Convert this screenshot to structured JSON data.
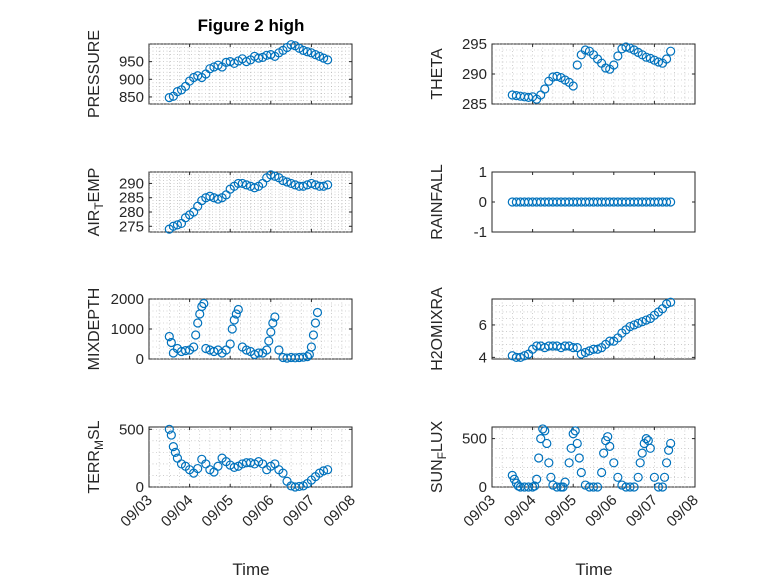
{
  "figure": {
    "title": "Figure 2 high",
    "xlabel": "Time",
    "x_tick_labels": [
      "09/03",
      "09/04",
      "09/05",
      "09/06",
      "09/07",
      "09/08"
    ],
    "marker_color": "#0072BD"
  },
  "chart_data": [
    {
      "type": "scatter",
      "ylabel": "PRESSURE",
      "ylim": [
        830,
        1000
      ],
      "yticks": [
        850,
        900,
        950
      ],
      "grid": true,
      "x": [
        3.5,
        3.6,
        3.7,
        3.8,
        3.9,
        4.0,
        4.1,
        4.2,
        4.3,
        4.4,
        4.5,
        4.6,
        4.7,
        4.8,
        4.9,
        5.0,
        5.1,
        5.2,
        5.3,
        5.4,
        5.5,
        5.6,
        5.7,
        5.8,
        5.9,
        6.0,
        6.1,
        6.2,
        6.3,
        6.4,
        6.5,
        6.6,
        6.7,
        6.8,
        6.9,
        7.0,
        7.1,
        7.2,
        7.3,
        7.4
      ],
      "y": [
        848,
        852,
        865,
        870,
        880,
        895,
        905,
        910,
        905,
        915,
        930,
        935,
        940,
        935,
        948,
        950,
        945,
        952,
        958,
        950,
        955,
        965,
        960,
        962,
        968,
        970,
        965,
        975,
        982,
        990,
        998,
        995,
        988,
        982,
        978,
        975,
        970,
        965,
        960,
        955
      ]
    },
    {
      "type": "scatter",
      "ylabel": "THETA",
      "ylim": [
        285,
        295
      ],
      "yticks": [
        285,
        290,
        295
      ],
      "grid": true,
      "x": [
        3.5,
        3.6,
        3.7,
        3.8,
        3.9,
        4.0,
        4.1,
        4.2,
        4.3,
        4.4,
        4.5,
        4.6,
        4.7,
        4.8,
        4.9,
        5.0,
        5.1,
        5.2,
        5.3,
        5.4,
        5.5,
        5.6,
        5.7,
        5.8,
        5.9,
        6.0,
        6.1,
        6.2,
        6.3,
        6.4,
        6.5,
        6.6,
        6.7,
        6.8,
        6.9,
        7.0,
        7.1,
        7.2,
        7.3,
        7.4
      ],
      "y": [
        286.5,
        286.4,
        286.3,
        286.2,
        286.1,
        286.2,
        285.8,
        286.5,
        287.5,
        288.8,
        289.5,
        289.6,
        289.4,
        289.0,
        288.6,
        288.0,
        291.5,
        293.2,
        294.0,
        293.8,
        293.2,
        292.5,
        291.8,
        291.0,
        290.8,
        291.5,
        293.0,
        294.2,
        294.5,
        294.3,
        294.0,
        293.6,
        293.2,
        292.8,
        292.6,
        292.3,
        292.0,
        291.8,
        292.5,
        293.8
      ]
    },
    {
      "type": "scatter",
      "ylabel": "AIR_TEMP",
      "ylim": [
        273,
        294
      ],
      "yticks": [
        275,
        280,
        285,
        290
      ],
      "grid": true,
      "x": [
        3.5,
        3.6,
        3.7,
        3.8,
        3.9,
        4.0,
        4.1,
        4.2,
        4.3,
        4.4,
        4.5,
        4.6,
        4.7,
        4.8,
        4.9,
        5.0,
        5.1,
        5.2,
        5.3,
        5.4,
        5.5,
        5.6,
        5.7,
        5.8,
        5.9,
        6.0,
        6.1,
        6.2,
        6.3,
        6.4,
        6.5,
        6.6,
        6.7,
        6.8,
        6.9,
        7.0,
        7.1,
        7.2,
        7.3,
        7.4
      ],
      "y": [
        274,
        275,
        275.5,
        276,
        278,
        279,
        280,
        282,
        284,
        285,
        285.5,
        285,
        284.5,
        285,
        286,
        288,
        289,
        290,
        290,
        289.5,
        289,
        288.5,
        289,
        290,
        292,
        293,
        292.5,
        292,
        291,
        290.5,
        290,
        289.5,
        289,
        289,
        289.5,
        290,
        289.5,
        289,
        289,
        289.5
      ]
    },
    {
      "type": "scatter",
      "ylabel": "RAINFALL",
      "ylim": [
        -1,
        1
      ],
      "yticks": [
        -1,
        0,
        1
      ],
      "grid": false,
      "x": [
        3.5,
        3.6,
        3.7,
        3.8,
        3.9,
        4.0,
        4.1,
        4.2,
        4.3,
        4.4,
        4.5,
        4.6,
        4.7,
        4.8,
        4.9,
        5.0,
        5.1,
        5.2,
        5.3,
        5.4,
        5.5,
        5.6,
        5.7,
        5.8,
        5.9,
        6.0,
        6.1,
        6.2,
        6.3,
        6.4,
        6.5,
        6.6,
        6.7,
        6.8,
        6.9,
        7.0,
        7.1,
        7.2,
        7.3,
        7.4
      ],
      "y": [
        0,
        0,
        0,
        0,
        0,
        0,
        0,
        0,
        0,
        0,
        0,
        0,
        0,
        0,
        0,
        0,
        0,
        0,
        0,
        0,
        0,
        0,
        0,
        0,
        0,
        0,
        0,
        0,
        0,
        0,
        0,
        0,
        0,
        0,
        0,
        0,
        0,
        0,
        0,
        0
      ]
    },
    {
      "type": "scatter",
      "ylabel": "MIXDEPTH",
      "ylim": [
        0,
        2000
      ],
      "yticks": [
        0,
        1000,
        2000
      ],
      "grid": true,
      "x": [
        3.5,
        3.55,
        3.6,
        3.7,
        3.8,
        3.9,
        4.0,
        4.1,
        4.15,
        4.2,
        4.25,
        4.3,
        4.35,
        4.4,
        4.5,
        4.6,
        4.7,
        4.8,
        4.9,
        5.0,
        5.05,
        5.1,
        5.15,
        5.2,
        5.3,
        5.4,
        5.5,
        5.6,
        5.7,
        5.8,
        5.9,
        5.95,
        6.0,
        6.05,
        6.1,
        6.2,
        6.3,
        6.4,
        6.5,
        6.6,
        6.7,
        6.8,
        6.9,
        6.95,
        7.0,
        7.05,
        7.1,
        7.15
      ],
      "y": [
        750,
        550,
        200,
        350,
        250,
        280,
        300,
        400,
        800,
        1200,
        1500,
        1750,
        1850,
        350,
        300,
        250,
        300,
        200,
        300,
        500,
        1000,
        1300,
        1500,
        1650,
        400,
        300,
        250,
        150,
        200,
        200,
        300,
        600,
        900,
        1200,
        1400,
        300,
        50,
        30,
        50,
        40,
        50,
        60,
        80,
        150,
        400,
        800,
        1200,
        1550
      ]
    },
    {
      "type": "scatter",
      "ylabel": "H2OMIXRA",
      "ylim": [
        3.9,
        7.6
      ],
      "yticks": [
        4,
        6
      ],
      "grid": true,
      "x": [
        3.5,
        3.6,
        3.7,
        3.8,
        3.9,
        4.0,
        4.1,
        4.2,
        4.3,
        4.4,
        4.5,
        4.6,
        4.7,
        4.8,
        4.9,
        5.0,
        5.1,
        5.2,
        5.3,
        5.4,
        5.5,
        5.6,
        5.7,
        5.8,
        5.9,
        6.0,
        6.1,
        6.2,
        6.3,
        6.4,
        6.5,
        6.6,
        6.7,
        6.8,
        6.9,
        7.0,
        7.1,
        7.2,
        7.3,
        7.4
      ],
      "y": [
        4.1,
        4.0,
        4.0,
        4.1,
        4.2,
        4.5,
        4.7,
        4.7,
        4.6,
        4.7,
        4.7,
        4.7,
        4.6,
        4.7,
        4.7,
        4.6,
        4.6,
        4.2,
        4.3,
        4.4,
        4.5,
        4.5,
        4.6,
        4.8,
        5.0,
        5.0,
        5.2,
        5.5,
        5.7,
        5.9,
        6.0,
        6.1,
        6.2,
        6.3,
        6.4,
        6.6,
        6.8,
        7.0,
        7.3,
        7.4
      ]
    },
    {
      "type": "scatter",
      "ylabel": "TERR_MSL",
      "ylim": [
        0,
        520
      ],
      "yticks": [
        0,
        500
      ],
      "grid": true,
      "x": [
        3.5,
        3.55,
        3.6,
        3.65,
        3.7,
        3.8,
        3.9,
        4.0,
        4.1,
        4.2,
        4.3,
        4.4,
        4.5,
        4.6,
        4.7,
        4.8,
        4.9,
        5.0,
        5.1,
        5.2,
        5.3,
        5.4,
        5.5,
        5.6,
        5.7,
        5.8,
        5.9,
        6.0,
        6.1,
        6.2,
        6.3,
        6.4,
        6.5,
        6.6,
        6.7,
        6.8,
        6.9,
        7.0,
        7.1,
        7.2,
        7.3,
        7.4
      ],
      "y": [
        500,
        450,
        350,
        300,
        250,
        200,
        180,
        150,
        120,
        160,
        240,
        200,
        150,
        130,
        180,
        250,
        220,
        190,
        170,
        180,
        200,
        210,
        210,
        200,
        220,
        200,
        150,
        180,
        200,
        150,
        120,
        50,
        10,
        0,
        5,
        10,
        30,
        60,
        90,
        120,
        140,
        150
      ]
    },
    {
      "type": "scatter",
      "ylabel": "SUN_FLUX",
      "ylim": [
        0,
        620
      ],
      "yticks": [
        0,
        500
      ],
      "grid": true,
      "x": [
        3.5,
        3.55,
        3.6,
        3.65,
        3.7,
        3.8,
        3.9,
        4.0,
        4.05,
        4.1,
        4.15,
        4.2,
        4.25,
        4.3,
        4.35,
        4.4,
        4.45,
        4.5,
        4.6,
        4.7,
        4.75,
        4.8,
        4.9,
        4.95,
        5.0,
        5.05,
        5.1,
        5.15,
        5.2,
        5.3,
        5.4,
        5.5,
        5.6,
        5.7,
        5.75,
        5.8,
        5.85,
        5.9,
        6.0,
        6.1,
        6.2,
        6.3,
        6.4,
        6.5,
        6.6,
        6.65,
        6.7,
        6.75,
        6.8,
        6.85,
        6.9,
        7.0,
        7.1,
        7.2,
        7.25,
        7.3,
        7.35,
        7.4
      ],
      "y": [
        120,
        80,
        40,
        10,
        0,
        0,
        0,
        0,
        10,
        80,
        300,
        500,
        600,
        580,
        450,
        250,
        100,
        20,
        0,
        0,
        0,
        50,
        250,
        400,
        550,
        580,
        450,
        300,
        150,
        20,
        0,
        0,
        0,
        150,
        350,
        480,
        520,
        420,
        250,
        100,
        20,
        0,
        0,
        0,
        100,
        250,
        350,
        450,
        500,
        480,
        400,
        100,
        0,
        0,
        100,
        250,
        380,
        450
      ]
    }
  ]
}
